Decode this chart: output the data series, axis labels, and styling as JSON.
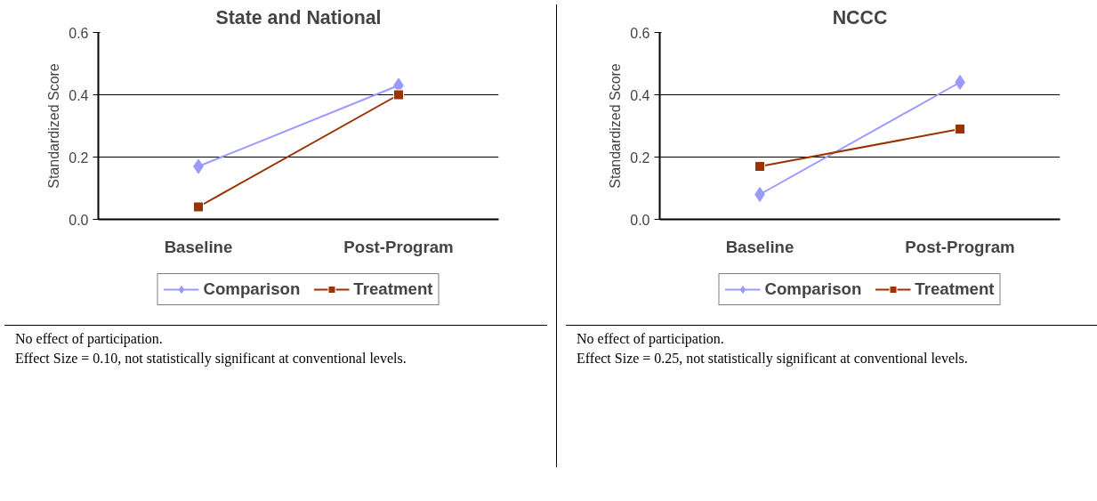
{
  "chart_data": [
    {
      "type": "line",
      "title": "State and National",
      "ylabel": "Standardized Score",
      "categories": [
        "Baseline",
        "Post-Program"
      ],
      "ylim": [
        0,
        0.6
      ],
      "yticks": [
        {
          "value": 0,
          "label": "0.0"
        },
        0.2,
        0.4,
        0.6
      ],
      "grid": "y",
      "legend": "bottom",
      "series": [
        {
          "name": "Comparison",
          "color": "#9999ff",
          "marker": "diamond",
          "values": [
            0.17,
            0.43
          ]
        },
        {
          "name": "Treatment",
          "color": "#993300",
          "marker": "square",
          "values": [
            0.04,
            0.4
          ]
        }
      ],
      "annotations": [
        "No effect of participation.",
        "Effect Size = 0.10, not statistically significant at conventional levels."
      ]
    },
    {
      "type": "line",
      "title": "NCCC",
      "ylabel": "Standardized Score",
      "categories": [
        "Baseline",
        "Post-Program"
      ],
      "ylim": [
        0,
        0.6
      ],
      "yticks": [
        {
          "value": 0,
          "label": "0.0"
        },
        0.2,
        0.4,
        0.6
      ],
      "grid": "y",
      "legend": "bottom",
      "series": [
        {
          "name": "Comparison",
          "color": "#9999ff",
          "marker": "diamond",
          "values": [
            0.08,
            0.44
          ]
        },
        {
          "name": "Treatment",
          "color": "#993300",
          "marker": "square",
          "values": [
            0.17,
            0.29
          ]
        }
      ],
      "annotations": [
        "No effect of participation.",
        "Effect Size = 0.25, not statistically significant at conventional levels."
      ]
    }
  ]
}
